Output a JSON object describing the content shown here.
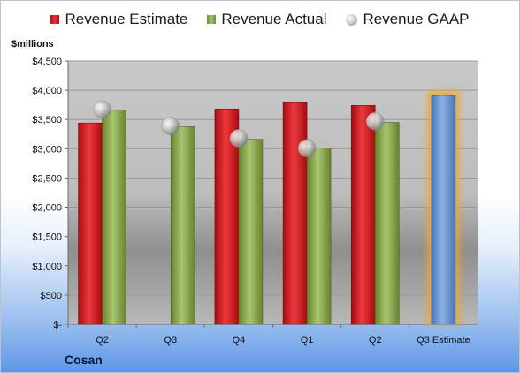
{
  "legend": {
    "estimate": "Revenue Estimate",
    "actual": "Revenue Actual",
    "gaap": "Revenue GAAP"
  },
  "units_label": "$millions",
  "company": "Cosan",
  "colors": {
    "estimate": "#d0181d",
    "actual": "#8eac55",
    "gaap": "#bfbfbf",
    "projection": "#6a94cf",
    "highlight": "#f5a623"
  },
  "chart_data": {
    "type": "bar",
    "categories": [
      "Q2",
      "Q3",
      "Q4",
      "Q1",
      "Q2",
      "Q3 Estimate"
    ],
    "ylim": [
      0,
      4500
    ],
    "yticks": [
      {
        "value": 0,
        "label": "$-"
      },
      {
        "value": 500,
        "label": "$500"
      },
      {
        "value": 1000,
        "label": "$1,000"
      },
      {
        "value": 1500,
        "label": "$1,500"
      },
      {
        "value": 2000,
        "label": "$2,000"
      },
      {
        "value": 2500,
        "label": "$2,500"
      },
      {
        "value": 3000,
        "label": "$3,000"
      },
      {
        "value": 3500,
        "label": "$3,500"
      },
      {
        "value": 4000,
        "label": "$4,000"
      },
      {
        "value": 4500,
        "label": "$4,500"
      }
    ],
    "series": [
      {
        "name": "Revenue Estimate",
        "values": [
          3440,
          null,
          3680,
          3800,
          3740,
          null
        ]
      },
      {
        "name": "Revenue Actual",
        "values": [
          3660,
          3380,
          3160,
          3010,
          3450,
          null
        ]
      },
      {
        "name": "Revenue GAAP",
        "values": [
          3670,
          3390,
          3180,
          3010,
          3470,
          null
        ]
      }
    ],
    "projection": {
      "category": "Q3 Estimate",
      "value": 3910
    },
    "grid": true,
    "legend_position": "top"
  }
}
